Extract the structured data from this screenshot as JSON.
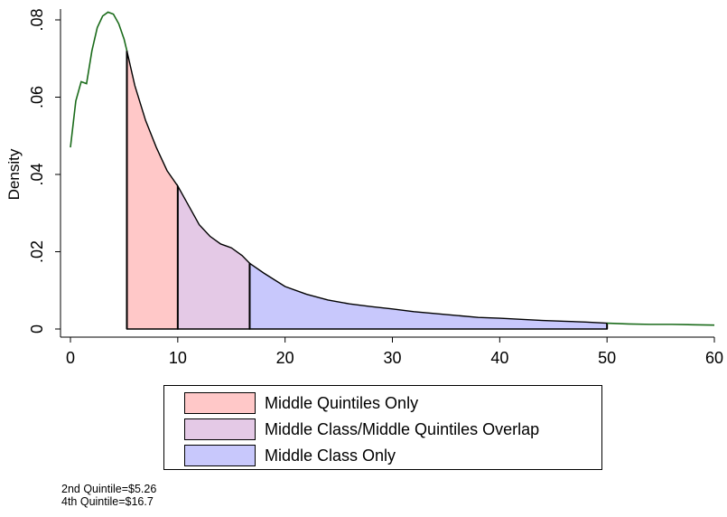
{
  "chart_data": {
    "type": "area",
    "ylabel": "Density",
    "xlabel": "",
    "xlim": [
      0,
      60
    ],
    "ylim": [
      0,
      0.08
    ],
    "x_ticks": [
      "0",
      "10",
      "20",
      "30",
      "40",
      "50",
      "60"
    ],
    "y_ticks": [
      "0",
      ".02",
      ".04",
      ".06",
      ".08"
    ],
    "curve": {
      "x": [
        0,
        0.5,
        1,
        1.5,
        2,
        2.5,
        3,
        3.5,
        4,
        4.5,
        5,
        5.26,
        6,
        7,
        8,
        9,
        10,
        11,
        12,
        13,
        14,
        15,
        16,
        16.7,
        18,
        20,
        22,
        24,
        26,
        28,
        30,
        32,
        34,
        36,
        38,
        40,
        42,
        44,
        46,
        48,
        50,
        52,
        54,
        56,
        58,
        60
      ],
      "y": [
        0.047,
        0.059,
        0.064,
        0.0635,
        0.072,
        0.078,
        0.081,
        0.082,
        0.0815,
        0.079,
        0.075,
        0.072,
        0.063,
        0.054,
        0.047,
        0.041,
        0.037,
        0.032,
        0.027,
        0.024,
        0.022,
        0.021,
        0.019,
        0.017,
        0.0145,
        0.011,
        0.009,
        0.0075,
        0.0065,
        0.0058,
        0.0052,
        0.0045,
        0.004,
        0.0035,
        0.003,
        0.0028,
        0.0025,
        0.0022,
        0.002,
        0.0018,
        0.0015,
        0.0013,
        0.0012,
        0.0012,
        0.0011,
        0.001
      ]
    },
    "regions": [
      {
        "name": "Middle Quintiles Only",
        "from": 5.26,
        "to": 10,
        "color": "#ffc8c8"
      },
      {
        "name": "Middle Class/Middle Quintiles Overlap",
        "from": 10,
        "to": 16.7,
        "color": "#e4c9e6"
      },
      {
        "name": "Middle Class Only",
        "from": 16.7,
        "to": 50,
        "color": "#c8c8fc"
      }
    ],
    "curve_color": "#1a6b1a",
    "legend_placement": "bottom",
    "grid": false
  },
  "notes": [
    "2nd Quintile=$5.26",
    "4th Quintile=$16.7"
  ]
}
